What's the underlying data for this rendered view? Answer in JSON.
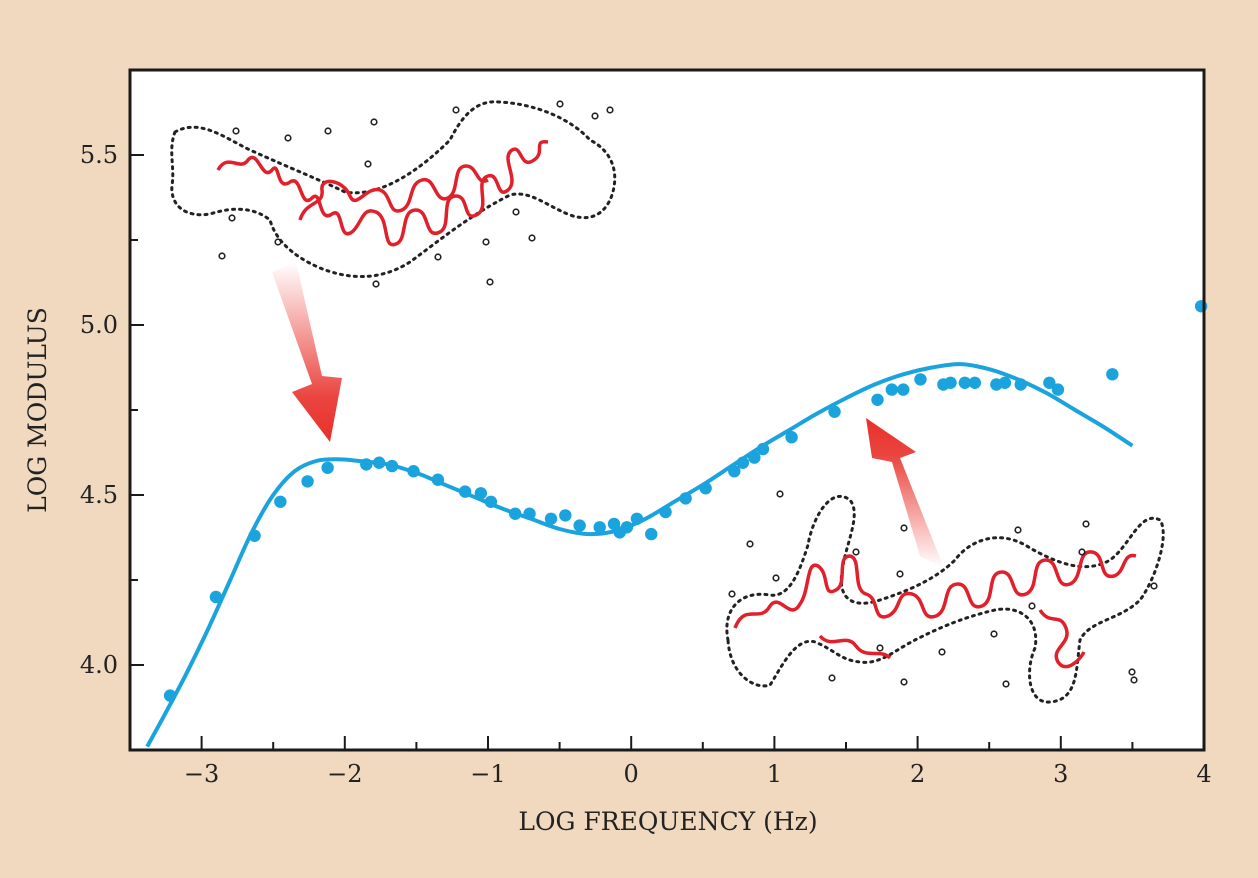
{
  "chart_data": {
    "type": "scatter",
    "xlabel": "LOG FREQUENCY (Hz)",
    "ylabel": "LOG MODULUS",
    "xlim": [
      -3.5,
      4
    ],
    "ylim": [
      3.75,
      5.75
    ],
    "x_ticks": [
      -3,
      -2,
      -1,
      0,
      1,
      2,
      3,
      4
    ],
    "x_tick_labels": [
      "−3",
      "−2",
      "−1",
      "0",
      "1",
      "2",
      "3",
      "4"
    ],
    "y_ticks": [
      4.0,
      4.5,
      5.0,
      5.5
    ],
    "y_tick_labels": [
      "4.0",
      "4.5",
      "5.0",
      "5.5"
    ],
    "grid": false,
    "legend": "none",
    "colors": {
      "series": "#1aa3dd",
      "chain": "#e0202a",
      "outline": "#222222",
      "arrow": "#e8302a",
      "background": "#f0d9bf",
      "plot_background": "#ffffff"
    },
    "series": [
      {
        "kind": "points",
        "x": [
          -3.22,
          -2.9,
          -2.63,
          -2.45,
          -2.26,
          -2.12,
          -1.85,
          -1.76,
          -1.67,
          -1.52,
          -1.35,
          -1.16,
          -1.05,
          -0.98,
          -0.81,
          -0.71,
          -0.56,
          -0.46,
          -0.36,
          -0.22,
          -0.12,
          -0.08,
          -0.03,
          0.04,
          0.14,
          0.24,
          0.38,
          0.52,
          0.72,
          0.78,
          0.86,
          0.92,
          1.12,
          1.42,
          1.72,
          1.82,
          1.9,
          2.02,
          2.18,
          2.23,
          2.33,
          2.4,
          2.55,
          2.61,
          2.72,
          2.92,
          2.98,
          3.36,
          3.98
        ],
        "y": [
          3.91,
          4.2,
          4.38,
          4.48,
          4.54,
          4.58,
          4.59,
          4.595,
          4.585,
          4.57,
          4.545,
          4.51,
          4.505,
          4.48,
          4.445,
          4.445,
          4.43,
          4.44,
          4.41,
          4.405,
          4.415,
          4.39,
          4.405,
          4.43,
          4.385,
          4.45,
          4.49,
          4.52,
          4.57,
          4.595,
          4.61,
          4.635,
          4.67,
          4.745,
          4.78,
          4.81,
          4.81,
          4.84,
          4.825,
          4.83,
          4.83,
          4.83,
          4.825,
          4.83,
          4.825,
          4.83,
          4.81,
          4.855,
          5.055
        ]
      },
      {
        "kind": "curve",
        "x": [
          -3.38,
          -3.25,
          -3.1,
          -2.95,
          -2.8,
          -2.65,
          -2.5,
          -2.35,
          -2.2,
          -2.05,
          -1.9,
          -1.7,
          -1.5,
          -1.3,
          -1.1,
          -0.9,
          -0.7,
          -0.5,
          -0.3,
          -0.1,
          0.1,
          0.3,
          0.5,
          0.7,
          0.9,
          1.1,
          1.3,
          1.5,
          1.7,
          1.9,
          2.1,
          2.3,
          2.5,
          2.7,
          2.9,
          3.1,
          3.3,
          3.5
        ],
        "y": [
          3.76,
          3.86,
          3.98,
          4.11,
          4.25,
          4.39,
          4.5,
          4.57,
          4.6,
          4.605,
          4.6,
          4.59,
          4.565,
          4.53,
          4.495,
          4.46,
          4.43,
          4.4,
          4.385,
          4.395,
          4.43,
          4.48,
          4.53,
          4.585,
          4.64,
          4.69,
          4.74,
          4.785,
          4.825,
          4.855,
          4.875,
          4.885,
          4.87,
          4.84,
          4.8,
          4.75,
          4.7,
          4.645
        ]
      }
    ]
  }
}
